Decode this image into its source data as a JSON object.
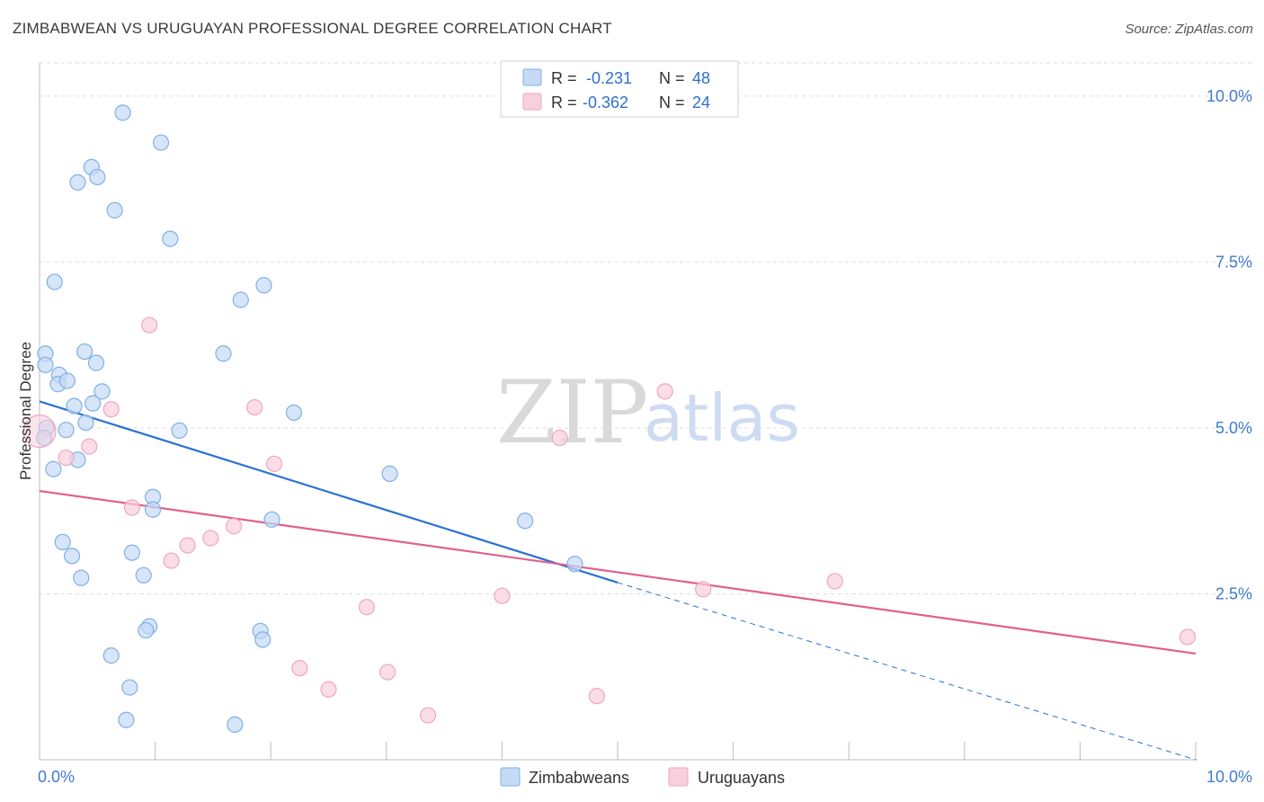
{
  "header": {
    "title": "ZIMBABWEAN VS URUGUAYAN PROFESSIONAL DEGREE CORRELATION CHART",
    "source": "Source: ZipAtlas.com"
  },
  "watermark": {
    "zip": "ZIP",
    "atlas": "atlas"
  },
  "chart_data": {
    "type": "scatter",
    "title": "ZIMBABWEAN VS URUGUAYAN PROFESSIONAL DEGREE CORRELATION CHART",
    "xlabel": "",
    "ylabel": "Professional Degree",
    "xlim": [
      0,
      10
    ],
    "ylim": [
      0,
      10.5
    ],
    "x_tick_labels": [
      {
        "value": 0,
        "label": "0.0%"
      },
      {
        "value": 10,
        "label": "10.0%"
      }
    ],
    "y_tick_labels": [
      {
        "value": 2.5,
        "label": "2.5%"
      },
      {
        "value": 5.0,
        "label": "5.0%"
      },
      {
        "value": 7.5,
        "label": "7.5%"
      },
      {
        "value": 10.0,
        "label": "10.0%"
      }
    ],
    "grid": true,
    "legend_position": "bottom-center",
    "stats_box": [
      {
        "r_label": "R =",
        "r_value": "-0.231",
        "n_label": "N =",
        "n_value": "48"
      },
      {
        "r_label": "R =",
        "r_value": "-0.362",
        "n_label": "N =",
        "n_value": "24"
      }
    ],
    "series": [
      {
        "name": "Zimbabweans",
        "color": "#7fb0e8",
        "line_color": "#2a72d2",
        "fill": "#c5daf5",
        "trend": {
          "x0": 0.0,
          "y0": 5.4,
          "x1": 5.0,
          "y1": 2.67,
          "dash_to_x": 10.0,
          "dash_to_y": 0.0
        },
        "points": [
          [
            0.72,
            9.75
          ],
          [
            1.05,
            9.3
          ],
          [
            0.45,
            8.93
          ],
          [
            0.33,
            8.7
          ],
          [
            0.5,
            8.78
          ],
          [
            0.65,
            8.28
          ],
          [
            1.13,
            7.85
          ],
          [
            0.13,
            7.2
          ],
          [
            1.94,
            7.15
          ],
          [
            1.74,
            6.93
          ],
          [
            0.05,
            6.12
          ],
          [
            0.39,
            6.15
          ],
          [
            1.59,
            6.12
          ],
          [
            0.49,
            5.98
          ],
          [
            0.05,
            5.95
          ],
          [
            0.17,
            5.8
          ],
          [
            0.16,
            5.66
          ],
          [
            0.24,
            5.71
          ],
          [
            0.54,
            5.55
          ],
          [
            0.46,
            5.37
          ],
          [
            0.3,
            5.33
          ],
          [
            2.2,
            5.23
          ],
          [
            0.4,
            5.08
          ],
          [
            0.06,
            5.0
          ],
          [
            0.23,
            4.97
          ],
          [
            1.21,
            4.96
          ],
          [
            0.04,
            4.85
          ],
          [
            0.33,
            4.52
          ],
          [
            0.12,
            4.38
          ],
          [
            3.03,
            4.31
          ],
          [
            0.98,
            3.96
          ],
          [
            0.98,
            3.77
          ],
          [
            2.01,
            3.62
          ],
          [
            4.2,
            3.6
          ],
          [
            0.2,
            3.28
          ],
          [
            0.8,
            3.12
          ],
          [
            0.28,
            3.07
          ],
          [
            4.63,
            2.95
          ],
          [
            0.9,
            2.78
          ],
          [
            0.36,
            2.74
          ],
          [
            0.95,
            2.01
          ],
          [
            0.92,
            1.95
          ],
          [
            1.91,
            1.94
          ],
          [
            1.93,
            1.81
          ],
          [
            0.62,
            1.57
          ],
          [
            0.78,
            1.09
          ],
          [
            0.75,
            0.6
          ],
          [
            1.69,
            0.53
          ]
        ]
      },
      {
        "name": "Uruguayans",
        "color": "#f0a6bf",
        "line_color": "#e0608e",
        "fill": "#f8cfdc",
        "trend": {
          "x0": 0.0,
          "y0": 4.05,
          "x1": 10.0,
          "y1": 1.6
        },
        "points": [
          [
            0.0,
            4.95
          ],
          [
            0.95,
            6.55
          ],
          [
            5.41,
            5.55
          ],
          [
            1.86,
            5.31
          ],
          [
            0.62,
            5.28
          ],
          [
            4.5,
            4.85
          ],
          [
            0.43,
            4.72
          ],
          [
            0.23,
            4.55
          ],
          [
            2.03,
            4.46
          ],
          [
            0.8,
            3.8
          ],
          [
            1.68,
            3.52
          ],
          [
            1.48,
            3.34
          ],
          [
            1.28,
            3.23
          ],
          [
            1.14,
            3.0
          ],
          [
            6.88,
            2.69
          ],
          [
            5.74,
            2.57
          ],
          [
            4.0,
            2.47
          ],
          [
            2.83,
            2.3
          ],
          [
            9.93,
            1.85
          ],
          [
            2.25,
            1.38
          ],
          [
            3.01,
            1.32
          ],
          [
            2.5,
            1.06
          ],
          [
            4.82,
            0.96
          ],
          [
            3.36,
            0.67
          ]
        ]
      }
    ]
  }
}
